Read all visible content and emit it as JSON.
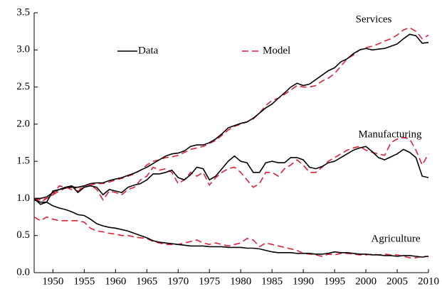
{
  "chart_data": {
    "type": "line",
    "legend": {
      "data": {
        "name": "Data",
        "color": "#000000",
        "dashed": false
      },
      "model": {
        "name": "Model",
        "color": "#e0203a",
        "dashed": true
      }
    },
    "x": [
      1947,
      1948,
      1949,
      1950,
      1951,
      1952,
      1953,
      1954,
      1955,
      1956,
      1957,
      1958,
      1959,
      1960,
      1961,
      1962,
      1963,
      1964,
      1965,
      1966,
      1967,
      1968,
      1969,
      1970,
      1971,
      1972,
      1973,
      1974,
      1975,
      1976,
      1977,
      1978,
      1979,
      1980,
      1981,
      1982,
      1983,
      1984,
      1985,
      1986,
      1987,
      1988,
      1989,
      1990,
      1991,
      1992,
      1993,
      1994,
      1995,
      1996,
      1997,
      1998,
      1999,
      2000,
      2001,
      2002,
      2003,
      2004,
      2005,
      2006,
      2007,
      2008,
      2009,
      2010
    ],
    "groups": [
      {
        "label": "Services",
        "data": [
          1.0,
          1.0,
          1.02,
          1.08,
          1.12,
          1.14,
          1.15,
          1.15,
          1.17,
          1.2,
          1.21,
          1.21,
          1.24,
          1.26,
          1.28,
          1.31,
          1.34,
          1.38,
          1.42,
          1.47,
          1.52,
          1.57,
          1.6,
          1.61,
          1.64,
          1.7,
          1.72,
          1.72,
          1.75,
          1.8,
          1.87,
          1.95,
          1.98,
          2.01,
          2.03,
          2.08,
          2.15,
          2.22,
          2.27,
          2.35,
          2.42,
          2.5,
          2.55,
          2.52,
          2.54,
          2.6,
          2.66,
          2.72,
          2.76,
          2.84,
          2.88,
          2.95,
          3.0,
          3.02,
          3.0,
          3.01,
          3.02,
          3.05,
          3.08,
          3.15,
          3.21,
          3.19,
          3.09,
          3.1
        ],
        "model": [
          1.0,
          0.98,
          1.0,
          1.05,
          1.1,
          1.14,
          1.17,
          1.12,
          1.15,
          1.18,
          1.2,
          1.2,
          1.22,
          1.25,
          1.27,
          1.3,
          1.33,
          1.38,
          1.45,
          1.5,
          1.52,
          1.55,
          1.56,
          1.58,
          1.62,
          1.66,
          1.68,
          1.7,
          1.74,
          1.78,
          1.85,
          1.92,
          1.97,
          2.0,
          2.03,
          2.07,
          2.15,
          2.25,
          2.32,
          2.35,
          2.4,
          2.46,
          2.52,
          2.5,
          2.5,
          2.52,
          2.58,
          2.62,
          2.68,
          2.78,
          2.88,
          2.93,
          3.0,
          3.03,
          3.05,
          3.08,
          3.12,
          3.15,
          3.2,
          3.27,
          3.3,
          3.25,
          3.15,
          3.2
        ]
      },
      {
        "label": "Manufacturing",
        "data": [
          1.0,
          0.92,
          0.95,
          1.1,
          1.12,
          1.15,
          1.17,
          1.08,
          1.15,
          1.17,
          1.15,
          1.05,
          1.12,
          1.1,
          1.08,
          1.15,
          1.18,
          1.2,
          1.25,
          1.33,
          1.33,
          1.35,
          1.38,
          1.28,
          1.25,
          1.32,
          1.42,
          1.4,
          1.25,
          1.3,
          1.4,
          1.5,
          1.57,
          1.5,
          1.48,
          1.35,
          1.35,
          1.48,
          1.5,
          1.48,
          1.48,
          1.55,
          1.55,
          1.52,
          1.42,
          1.4,
          1.43,
          1.48,
          1.5,
          1.55,
          1.6,
          1.65,
          1.68,
          1.7,
          1.63,
          1.55,
          1.52,
          1.56,
          1.6,
          1.66,
          1.62,
          1.55,
          1.3,
          1.28
        ],
        "model": [
          1.0,
          0.95,
          1.0,
          1.05,
          1.17,
          1.15,
          1.12,
          1.1,
          1.15,
          1.18,
          1.12,
          0.98,
          1.1,
          1.08,
          1.05,
          1.12,
          1.15,
          1.25,
          1.3,
          1.42,
          1.38,
          1.4,
          1.35,
          1.2,
          1.25,
          1.35,
          1.3,
          1.35,
          1.18,
          1.28,
          1.35,
          1.4,
          1.42,
          1.35,
          1.25,
          1.15,
          1.2,
          1.35,
          1.35,
          1.3,
          1.4,
          1.45,
          1.52,
          1.45,
          1.35,
          1.35,
          1.42,
          1.5,
          1.55,
          1.6,
          1.65,
          1.68,
          1.7,
          1.65,
          1.62,
          1.6,
          1.58,
          1.75,
          1.8,
          1.82,
          1.8,
          1.65,
          1.45,
          1.6
        ]
      },
      {
        "label": "Agriculture",
        "data": [
          0.98,
          0.95,
          0.95,
          0.9,
          0.87,
          0.85,
          0.82,
          0.78,
          0.77,
          0.72,
          0.66,
          0.63,
          0.61,
          0.6,
          0.58,
          0.56,
          0.53,
          0.5,
          0.47,
          0.43,
          0.41,
          0.4,
          0.39,
          0.38,
          0.37,
          0.36,
          0.36,
          0.36,
          0.35,
          0.35,
          0.35,
          0.34,
          0.34,
          0.34,
          0.33,
          0.33,
          0.32,
          0.3,
          0.28,
          0.27,
          0.27,
          0.27,
          0.26,
          0.26,
          0.26,
          0.25,
          0.25,
          0.26,
          0.28,
          0.27,
          0.27,
          0.26,
          0.25,
          0.25,
          0.24,
          0.24,
          0.23,
          0.23,
          0.22,
          0.23,
          0.23,
          0.22,
          0.21,
          0.22
        ],
        "model": [
          0.75,
          0.7,
          0.75,
          0.72,
          0.7,
          0.7,
          0.7,
          0.7,
          0.68,
          0.6,
          0.56,
          0.55,
          0.53,
          0.52,
          0.5,
          0.5,
          0.48,
          0.47,
          0.46,
          0.42,
          0.4,
          0.38,
          0.38,
          0.38,
          0.4,
          0.42,
          0.44,
          0.4,
          0.38,
          0.4,
          0.38,
          0.36,
          0.38,
          0.4,
          0.46,
          0.44,
          0.35,
          0.4,
          0.38,
          0.36,
          0.34,
          0.32,
          0.3,
          0.26,
          0.25,
          0.24,
          0.22,
          0.25,
          0.24,
          0.26,
          0.26,
          0.25,
          0.24,
          0.24,
          0.25,
          0.24,
          0.25,
          0.24,
          0.24,
          0.22,
          0.2,
          0.2,
          0.22,
          0.22
        ]
      }
    ],
    "xlim": [
      1947,
      2010
    ],
    "xticks": [
      1950,
      1955,
      1960,
      1965,
      1970,
      1975,
      1980,
      1985,
      1990,
      1995,
      2000,
      2005,
      2010
    ],
    "ylim": [
      0,
      3.5
    ],
    "yticks": [
      {
        "value": 0,
        "label": "0.0"
      },
      0.5,
      {
        "value": 1,
        "label": "1.0"
      },
      1.5,
      {
        "value": 2,
        "label": "2.0"
      },
      2.5,
      {
        "value": 3,
        "label": "3.0"
      },
      3.5
    ]
  }
}
